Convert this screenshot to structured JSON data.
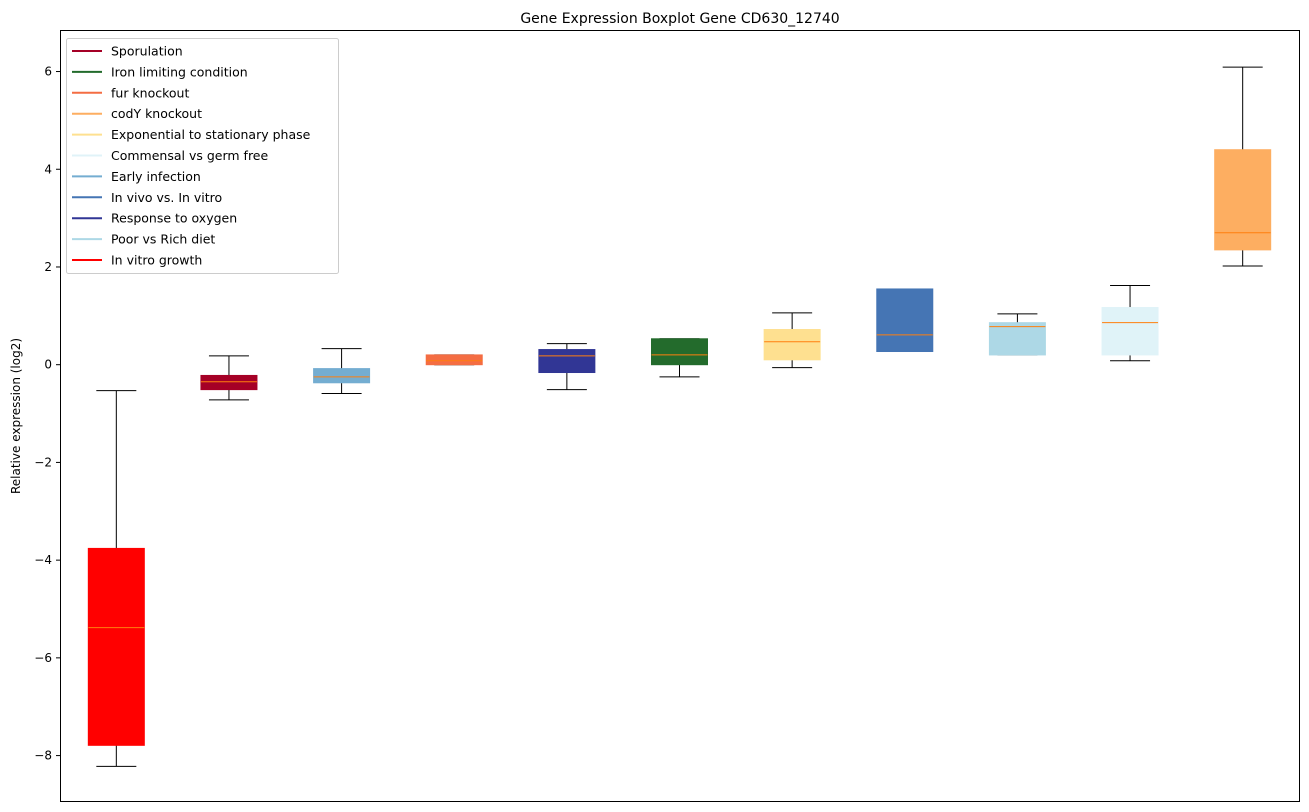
{
  "chart_data": {
    "type": "boxplot",
    "title": "Gene Expression Boxplot Gene CD630_12740",
    "xlabel": "",
    "ylabel": "Relative expression (log2)",
    "ylim": [
      -8.95,
      6.85
    ],
    "yticks": [
      -8,
      -6,
      -4,
      -2,
      0,
      2,
      4,
      6
    ],
    "ytick_labels": [
      "−8",
      "−6",
      "−4",
      "−2",
      "0",
      "2",
      "4",
      "6"
    ],
    "grid": false,
    "legend_position": "top-left",
    "median_color": "#ff7f0e",
    "legend": [
      {
        "name": "Sporulation",
        "color": "#a50026"
      },
      {
        "name": "Iron limiting condition",
        "color": "#236b2c"
      },
      {
        "name": "fur knockout",
        "color": "#f46d43"
      },
      {
        "name": "codY knockout",
        "color": "#fdae61"
      },
      {
        "name": "Exponential to stationary phase",
        "color": "#fee090"
      },
      {
        "name": "Commensal vs germ free",
        "color": "#e0f3f8"
      },
      {
        "name": "Early infection",
        "color": "#74add1"
      },
      {
        "name": "In vivo vs. In vitro",
        "color": "#4575b4"
      },
      {
        "name": "Response to oxygen",
        "color": "#313695"
      },
      {
        "name": "Poor vs Rich diet",
        "color": "#add8e6"
      },
      {
        "name": "In vitro growth",
        "color": "#ff0000"
      }
    ],
    "boxes": [
      {
        "group": "In vitro growth",
        "whislo": -8.22,
        "q1": -7.79,
        "med": -5.38,
        "q3": -3.76,
        "whishi": -0.53
      },
      {
        "group": "Sporulation",
        "whislo": -0.72,
        "q1": -0.51,
        "med": -0.35,
        "q3": -0.22,
        "whishi": 0.18
      },
      {
        "group": "Early infection",
        "whislo": -0.59,
        "q1": -0.37,
        "med": -0.25,
        "q3": -0.08,
        "whishi": 0.33
      },
      {
        "group": "fur knockout",
        "whislo": 0.0,
        "q1": 0.0,
        "med": 0.08,
        "q3": 0.2,
        "whishi": 0.2
      },
      {
        "group": "Response to oxygen",
        "whislo": -0.51,
        "q1": -0.16,
        "med": 0.18,
        "q3": 0.31,
        "whishi": 0.43
      },
      {
        "group": "Iron limiting condition",
        "whislo": -0.25,
        "q1": 0.0,
        "med": 0.2,
        "q3": 0.53,
        "whishi": 0.53
      },
      {
        "group": "Exponential to stationary phase",
        "whislo": -0.06,
        "q1": 0.1,
        "med": 0.47,
        "q3": 0.72,
        "whishi": 1.06
      },
      {
        "group": "In vivo vs. In vitro",
        "whislo": 0.27,
        "q1": 0.27,
        "med": 0.61,
        "q3": 1.55,
        "whishi": 1.55
      },
      {
        "group": "Poor vs Rich diet",
        "whislo": 0.2,
        "q1": 0.2,
        "med": 0.78,
        "q3": 0.86,
        "whishi": 1.04
      },
      {
        "group": "Commensal vs germ free",
        "whislo": 0.08,
        "q1": 0.2,
        "med": 0.86,
        "q3": 1.17,
        "whishi": 1.62
      },
      {
        "group": "codY knockout",
        "whislo": 2.02,
        "q1": 2.35,
        "med": 2.7,
        "q3": 4.4,
        "whishi": 6.09
      }
    ]
  }
}
